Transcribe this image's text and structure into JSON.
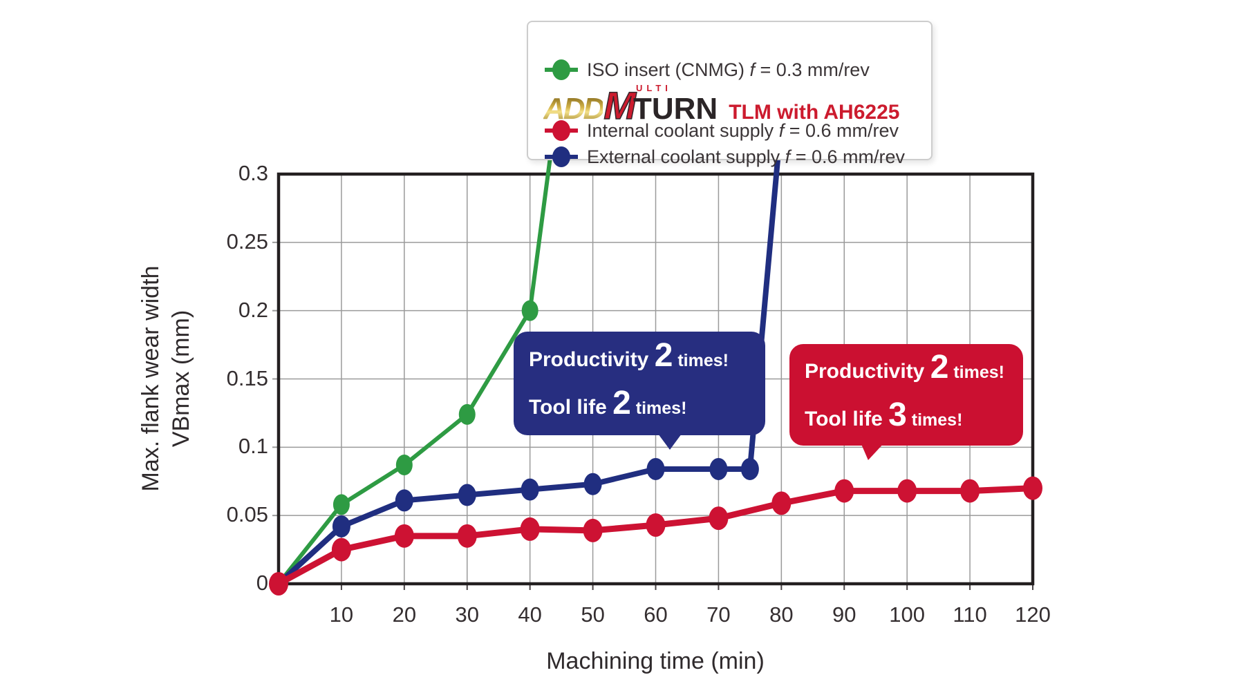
{
  "axes": {
    "x_title": "Machining time (min)",
    "y_title_line1": "Max. flank wear width",
    "y_title_line2": "VBmax (mm)"
  },
  "legend": {
    "items": [
      {
        "prefix": "ISO insert (CNMG) ",
        "f": "f",
        "suffix": " = 0.3 mm/rev",
        "color": "#2e9b43"
      },
      {
        "prefix": "Internal coolant supply ",
        "f": "f",
        "suffix": " = 0.6 mm/rev",
        "color": "#cd1233"
      },
      {
        "prefix": "External coolant supply ",
        "f": "f",
        "suffix": " = 0.6 mm/rev",
        "color": "#202e80"
      }
    ],
    "logo": {
      "add": "ADD",
      "m": "M",
      "ulti": "ULTI",
      "turn": "TURN",
      "tlm": "TLM with AH6225"
    }
  },
  "callouts": [
    {
      "line1_label": "Productivity ",
      "line1_num": "2",
      "line1_suffix": " times!",
      "line2_label": "Tool life ",
      "line2_num": "2",
      "line2_suffix": " times!",
      "color": "#272e80"
    },
    {
      "line1_label": "Productivity ",
      "line1_num": "2",
      "line1_suffix": " times!",
      "line2_label": "Tool life ",
      "line2_num": "3",
      "line2_suffix": " times!",
      "color": "#cb1031"
    }
  ],
  "chart_data": {
    "type": "line",
    "title": "",
    "xlabel": "Machining time (min)",
    "ylabel": "Max. flank wear width VBmax (mm)",
    "xlim": [
      0,
      120
    ],
    "ylim": [
      0,
      0.3
    ],
    "grid": true,
    "x_tick_values": [
      10,
      20,
      30,
      40,
      50,
      60,
      70,
      80,
      90,
      100,
      110,
      120
    ],
    "x_tick_labels": [
      "10",
      "20",
      "30",
      "40",
      "50",
      "60",
      "70",
      "80",
      "90",
      "100",
      "110",
      "120"
    ],
    "y_tick_values": [
      0,
      0.05,
      0.1,
      0.15,
      0.2,
      0.25,
      0.3
    ],
    "y_tick_labels": [
      "0",
      "0.05",
      "0.1",
      "0.15",
      "0.2",
      "0.25",
      "0.3"
    ],
    "series": [
      {
        "name": "ISO insert (CNMG) f = 0.3 mm/rev",
        "color": "#2e9b43",
        "line_width": 6,
        "marker_rx": 12,
        "marker_ry": 15,
        "x": [
          0,
          10,
          20,
          30,
          40
        ],
        "y": [
          0,
          0.058,
          0.087,
          0.124,
          0.2
        ],
        "runout": {
          "x": 43.3,
          "y": 0.315
        }
      },
      {
        "name": "External coolant supply f = 0.6 mm/rev",
        "color": "#202e80",
        "line_width": 8,
        "marker_rx": 13,
        "marker_ry": 16,
        "x": [
          0,
          10,
          20,
          30,
          40,
          50,
          60,
          70,
          75
        ],
        "y": [
          0,
          0.042,
          0.061,
          0.065,
          0.069,
          0.073,
          0.084,
          0.084,
          0.084
        ],
        "runout": {
          "x": 79.5,
          "y": 0.315
        }
      },
      {
        "name": "Internal coolant supply f = 0.6 mm/rev",
        "color": "#cd1233",
        "line_width": 9,
        "marker_rx": 14,
        "marker_ry": 17,
        "x": [
          0,
          10,
          20,
          30,
          40,
          50,
          60,
          70,
          80,
          90,
          100,
          110,
          120
        ],
        "y": [
          0,
          0.025,
          0.035,
          0.035,
          0.04,
          0.039,
          0.043,
          0.048,
          0.059,
          0.068,
          0.068,
          0.068,
          0.07
        ]
      }
    ],
    "legend_position": "top-right",
    "colors": {
      "grid": "#9a9a9a",
      "axis": "#231f20",
      "tick_text": "#342e30"
    }
  }
}
